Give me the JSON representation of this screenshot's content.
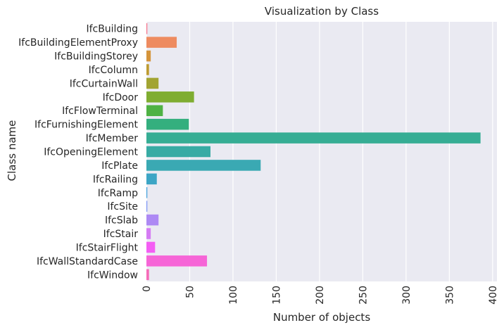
{
  "chart_data": {
    "type": "bar",
    "orientation": "horizontal",
    "title": "Visualization by Class",
    "xlabel": "Number of objects",
    "ylabel": "Class name",
    "xlim": [
      0,
      400
    ],
    "xticks": [
      0,
      50,
      100,
      150,
      200,
      250,
      300,
      350,
      400
    ],
    "grid": true,
    "background": "#eaeaf2",
    "categories": [
      "IfcBuilding",
      "IfcBuildingElementProxy",
      "IfcBuildingStorey",
      "IfcColumn",
      "IfcCurtainWall",
      "IfcDoor",
      "IfcFlowTerminal",
      "IfcFurnishingElement",
      "IfcMember",
      "IfcOpeningElement",
      "IfcPlate",
      "IfcRailing",
      "IfcRamp",
      "IfcSite",
      "IfcSlab",
      "IfcStair",
      "IfcStairFlight",
      "IfcWallStandardCase",
      "IfcWindow"
    ],
    "values": [
      1,
      35,
      5,
      3,
      14,
      55,
      19,
      49,
      386,
      74,
      132,
      12,
      1,
      1,
      14,
      5,
      10,
      70,
      3
    ],
    "colors": [
      "#f77189",
      "#ee8b60",
      "#d5943b",
      "#be9c31",
      "#a2a432",
      "#7fad31",
      "#4fb244",
      "#34af7e",
      "#36ad94",
      "#38aba4",
      "#3aa9b3",
      "#3ca5c5",
      "#41a0dc",
      "#7c95f4",
      "#ad89f4",
      "#d57bf4",
      "#f45ef4",
      "#f665d7",
      "#f66bb8"
    ]
  }
}
